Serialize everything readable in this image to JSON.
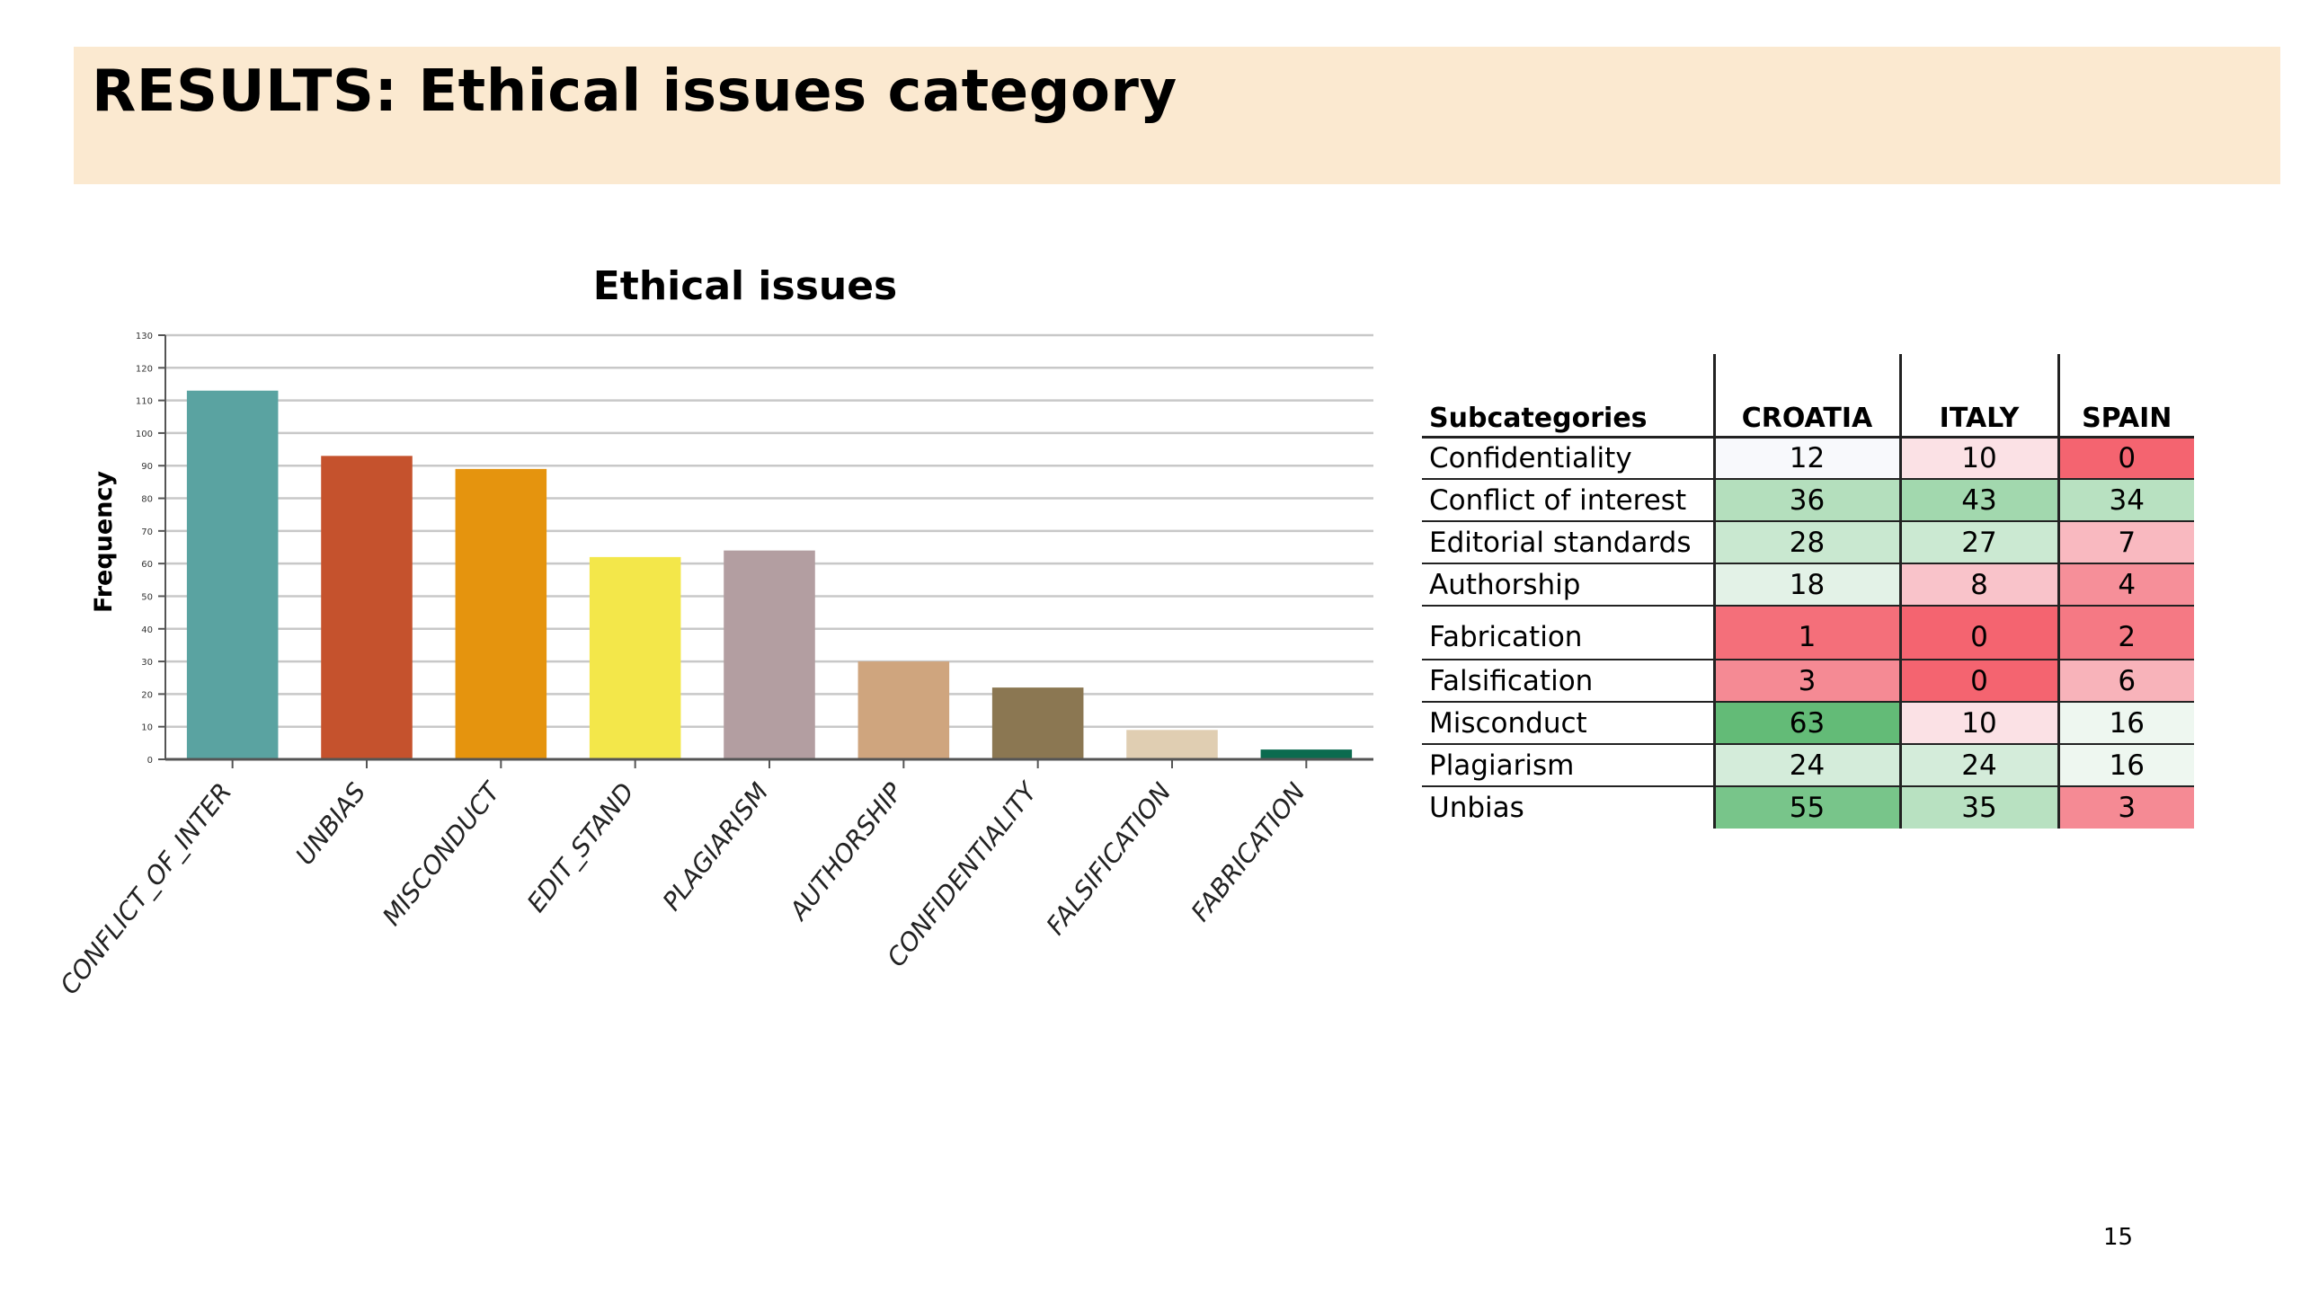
{
  "slide": {
    "title": "RESULTS: Ethical issues category",
    "page_number": "15"
  },
  "chart_data": {
    "type": "bar",
    "title": "Ethical issues",
    "xlabel": "",
    "ylabel": "Frequency",
    "ylim": [
      0,
      130
    ],
    "yticks": [
      0,
      10,
      20,
      30,
      40,
      50,
      60,
      70,
      80,
      90,
      100,
      110,
      120,
      130
    ],
    "grid": true,
    "categories": [
      "CONFLICT_OF_INTER",
      "UNBIAS",
      "MISCONDUCT",
      "EDIT_STAND",
      "PLAGIARISM",
      "AUTHORSHIP",
      "CONFIDENTIALITY",
      "FALSIFICATION",
      "FABRICATION"
    ],
    "values": [
      113,
      93,
      89,
      62,
      64,
      30,
      22,
      9,
      3
    ],
    "colors": [
      "#5aa3a1",
      "#c5522d",
      "#e5940e",
      "#f3e74a",
      "#b39ea1",
      "#cfa57e",
      "#8b7752",
      "#e0ceb2",
      "#0b6b4f"
    ]
  },
  "table": {
    "headers": [
      "Subcategories",
      "CROATIA",
      "ITALY",
      "SPAIN"
    ],
    "rows": [
      {
        "label": "Confidentiality",
        "values": [
          "12",
          "10",
          "0"
        ],
        "colors": [
          "#f8f9fc",
          "#fbe1e5",
          "#f46470"
        ]
      },
      {
        "label": "Conflict of interest",
        "values": [
          "36",
          "43",
          "34"
        ],
        "colors": [
          "#b4dfbd",
          "#a2d8ae",
          "#b8e1c1"
        ]
      },
      {
        "label": "Editorial standards",
        "values": [
          "28",
          "27",
          "7"
        ],
        "colors": [
          "#c9e8d0",
          "#cbe9d2",
          "#f9b9c0"
        ]
      },
      {
        "label": "Authorship",
        "values": [
          "18",
          "8",
          "4"
        ],
        "colors": [
          "#e3f2e7",
          "#f9c3ca",
          "#f68f99"
        ]
      },
      {
        "label": "Fabrication",
        "values": [
          "1",
          "0",
          "2"
        ],
        "colors": [
          "#f46f7a",
          "#f46470",
          "#f57984"
        ]
      },
      {
        "label": "Falsification",
        "values": [
          "3",
          "0",
          "6"
        ],
        "colors": [
          "#f58a94",
          "#f46470",
          "#f8b3ba"
        ]
      },
      {
        "label": "Misconduct",
        "values": [
          "63",
          "10",
          "16"
        ],
        "colors": [
          "#63bb77",
          "#fbe1e5",
          "#eef7f0"
        ]
      },
      {
        "label": "Plagiarism",
        "values": [
          "24",
          "24",
          "16"
        ],
        "colors": [
          "#d4ecda",
          "#d4ecda",
          "#eef7f0"
        ]
      },
      {
        "label": "Unbias",
        "values": [
          "55",
          "35",
          "3"
        ],
        "colors": [
          "#78c58a",
          "#b8e1c1",
          "#f58a94"
        ]
      }
    ]
  }
}
